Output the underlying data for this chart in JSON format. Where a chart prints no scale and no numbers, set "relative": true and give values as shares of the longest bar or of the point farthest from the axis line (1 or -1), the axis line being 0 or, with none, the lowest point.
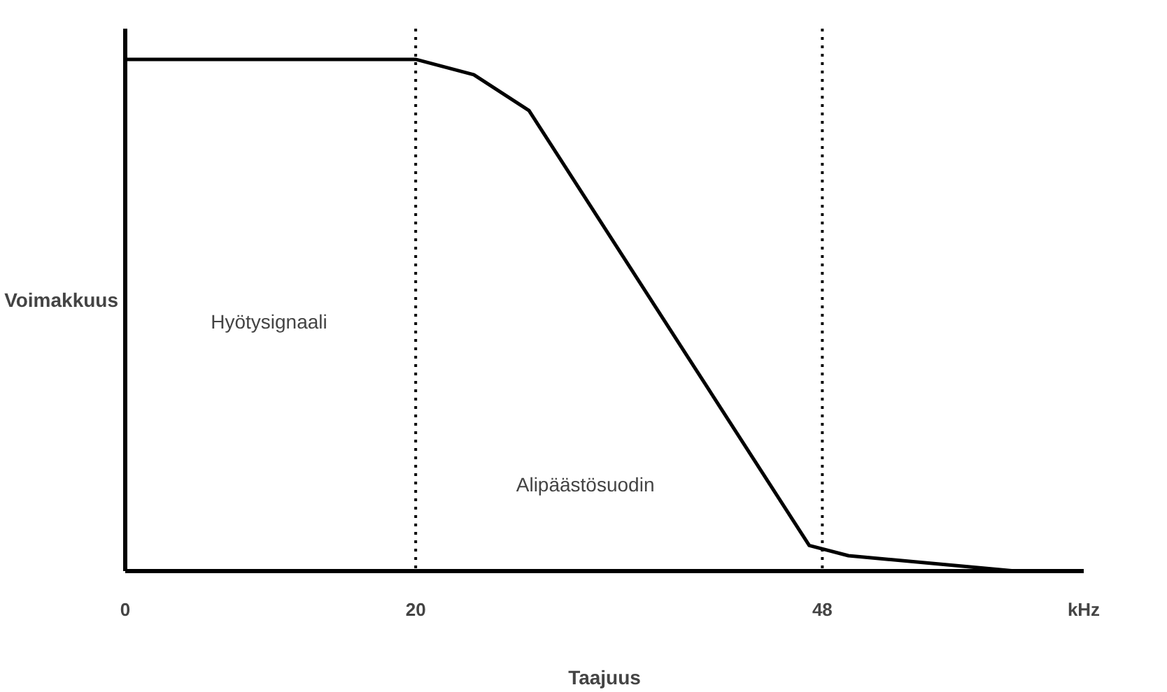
{
  "chart_data": {
    "type": "line",
    "relative": true,
    "xlabel": "Taajuus",
    "ylabel": "Voimakkuus",
    "x": [
      0,
      20,
      24,
      27.8,
      47.1,
      49.8,
      61.3
    ],
    "series": [
      {
        "color": "#000000",
        "values": [
          1,
          1,
          0.97,
          0.9,
          0.05,
          0.03,
          0
        ]
      }
    ],
    "xlim": [
      0,
      66
    ],
    "xticks": [
      0,
      20,
      48
    ],
    "ref_lines": [
      {
        "axis": "x",
        "value": 20,
        "line_style": "dotted",
        "color": "#000000"
      },
      {
        "axis": "x",
        "value": 48,
        "line_style": "dotted",
        "color": "#000000"
      }
    ],
    "annotations": [
      "Hyötysignaali",
      "Alipäästösuodin",
      "kHz"
    ],
    "grid": false,
    "marker": "none",
    "line_style": "solid"
  }
}
